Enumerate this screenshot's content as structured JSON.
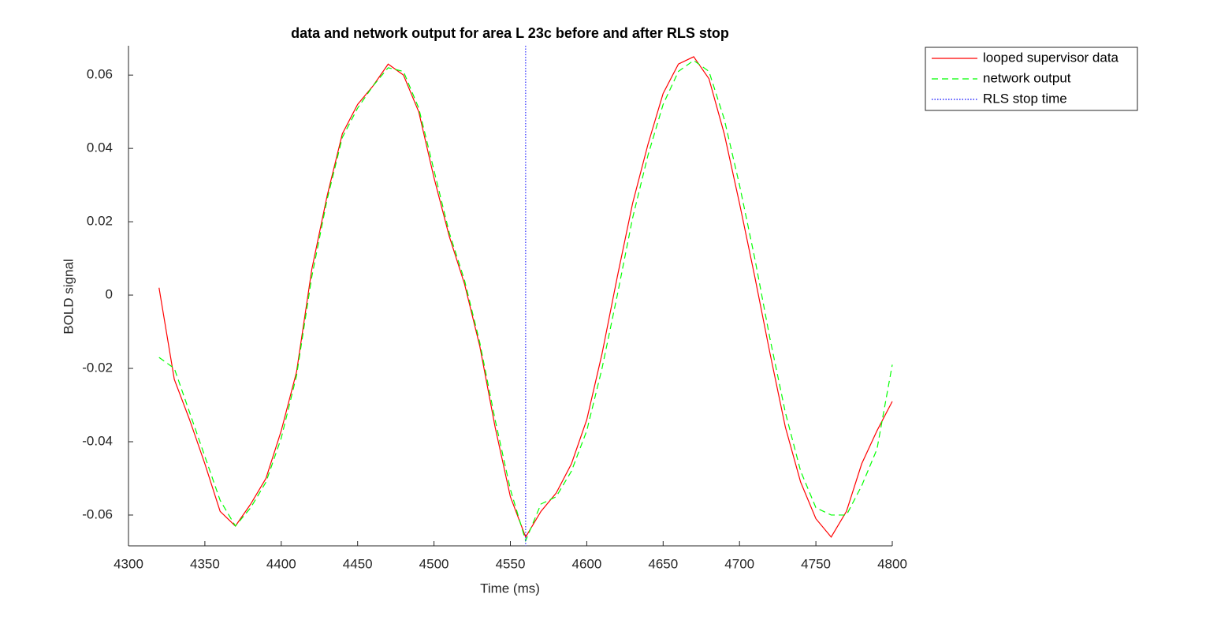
{
  "chart_data": {
    "type": "line",
    "title": "data and network output for area L 23c before and after RLS stop",
    "xlabel": "Time (ms)",
    "ylabel": "BOLD signal",
    "x": [
      4320,
      4330,
      4340,
      4350,
      4360,
      4370,
      4380,
      4390,
      4400,
      4410,
      4420,
      4430,
      4440,
      4450,
      4460,
      4470,
      4480,
      4490,
      4500,
      4510,
      4520,
      4530,
      4540,
      4550,
      4560,
      4570,
      4580,
      4590,
      4600,
      4610,
      4620,
      4630,
      4640,
      4650,
      4660,
      4670,
      4680,
      4690,
      4700,
      4710,
      4720,
      4730,
      4740,
      4750,
      4760,
      4770,
      4780,
      4790,
      4800
    ],
    "series": [
      {
        "name": "looped supervisor data",
        "color": "#ff0000",
        "dash": "solid",
        "values": [
          0.002,
          -0.023,
          -0.034,
          -0.046,
          -0.059,
          -0.063,
          -0.057,
          -0.05,
          -0.037,
          -0.021,
          0.007,
          0.027,
          0.044,
          0.052,
          0.057,
          0.063,
          0.06,
          0.05,
          0.032,
          0.016,
          0.003,
          -0.014,
          -0.036,
          -0.055,
          -0.066,
          -0.059,
          -0.054,
          -0.046,
          -0.034,
          -0.016,
          0.005,
          0.025,
          0.041,
          0.055,
          0.063,
          0.065,
          0.059,
          0.044,
          0.025,
          0.005,
          -0.016,
          -0.036,
          -0.051,
          -0.061,
          -0.066,
          -0.059,
          -0.046,
          -0.037,
          -0.029
        ]
      },
      {
        "name": "network output",
        "color": "#00ff00",
        "dash": "dashed",
        "values": [
          -0.017,
          -0.02,
          -0.032,
          -0.044,
          -0.056,
          -0.063,
          -0.058,
          -0.051,
          -0.039,
          -0.022,
          0.005,
          0.026,
          0.043,
          0.051,
          0.057,
          0.062,
          0.061,
          0.051,
          0.034,
          0.017,
          0.004,
          -0.013,
          -0.034,
          -0.053,
          -0.067,
          -0.057,
          -0.055,
          -0.048,
          -0.037,
          -0.02,
          0.0,
          0.021,
          0.038,
          0.052,
          0.061,
          0.064,
          0.061,
          0.048,
          0.03,
          0.01,
          -0.012,
          -0.032,
          -0.048,
          -0.058,
          -0.06,
          -0.06,
          -0.052,
          -0.042,
          -0.019
        ]
      }
    ],
    "reference_lines": [
      {
        "name": "RLS stop time",
        "x": 4560,
        "color": "#0000ff",
        "dash": "dotted"
      }
    ],
    "xlim": [
      4300,
      4800
    ],
    "xticks": [
      4300,
      4350,
      4400,
      4450,
      4500,
      4550,
      4600,
      4650,
      4700,
      4750,
      4800
    ],
    "ylim": [
      -0.0684,
      0.068
    ],
    "yticks": [
      -0.06,
      -0.04,
      -0.02,
      0,
      0.02,
      0.04,
      0.06
    ],
    "legend": "outside-top-right"
  }
}
